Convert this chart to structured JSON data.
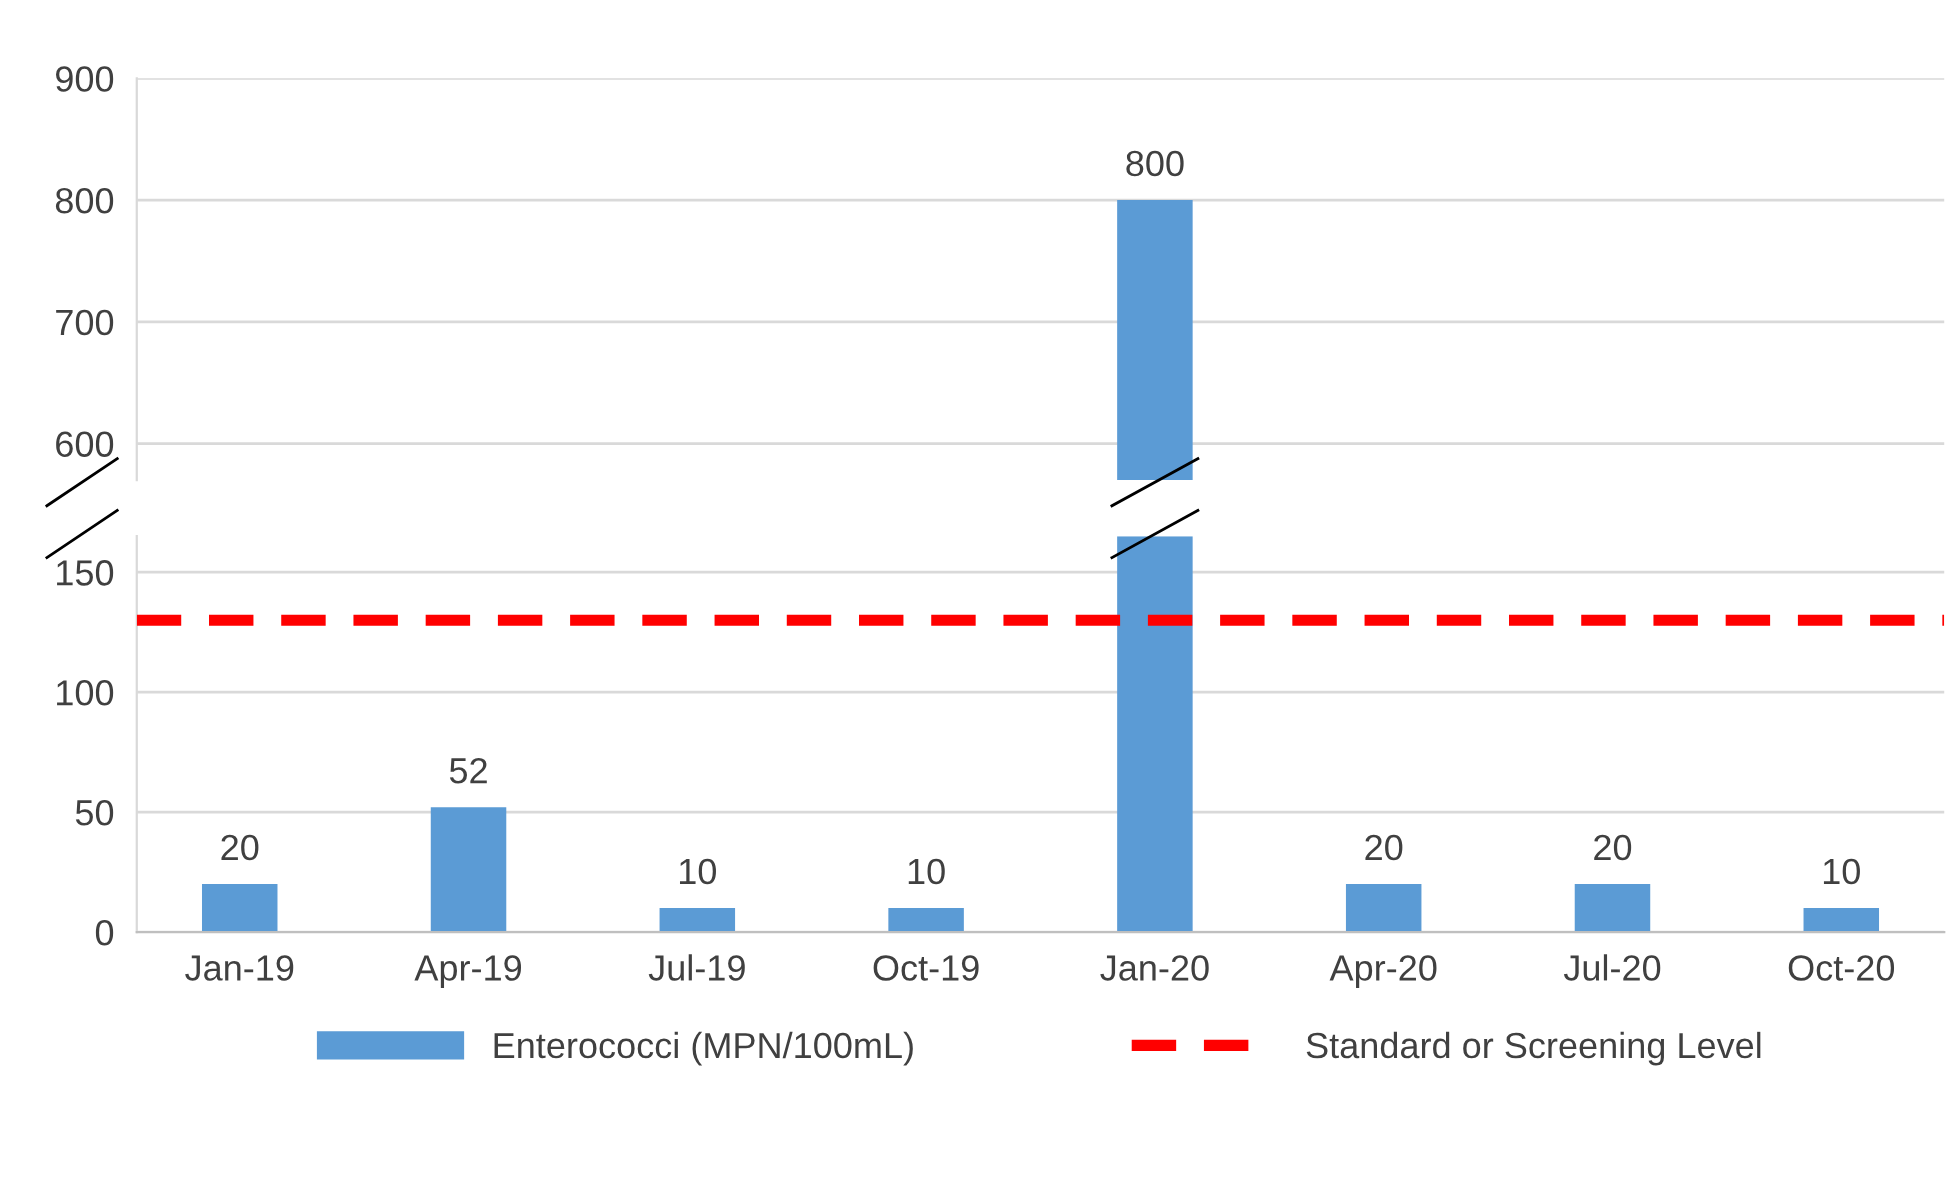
{
  "chart_data": [
    {
      "type": "bar",
      "categories": [
        null,
        null,
        null,
        null,
        null,
        null,
        null,
        null
      ],
      "series": [
        {
          "color": "#5b9bd5",
          "values": [
            null,
            null,
            null,
            null,
            800,
            null,
            null,
            null
          ]
        }
      ],
      "ylim": [
        570,
        900
      ],
      "yticks": [
        600,
        700,
        800,
        900
      ],
      "tick_labels": "y",
      "data_labels": true,
      "grid": "y"
    },
    {
      "type": "bar",
      "categories": [
        "Jan-19",
        "Apr-19",
        "Jul-19",
        "Oct-19",
        "Jan-20",
        "Apr-20",
        "Jul-20",
        "Oct-20"
      ],
      "series": [
        {
          "name": "Enterococci (MPN/100mL)",
          "color": "#5b9bd5",
          "values": [
            20,
            52,
            10,
            10,
            165,
            20,
            20,
            10
          ],
          "value_labels": [
            "20",
            "52",
            "10",
            "10",
            null,
            "20",
            "20",
            "10"
          ]
        }
      ],
      "ylim": [
        0,
        165
      ],
      "yticks": [
        0,
        50,
        100,
        150
      ],
      "ref_lines": [
        {
          "axis": "y",
          "value": 130,
          "label": "Standard or Screening Level",
          "color": "#ff0000",
          "line_style": "dashed"
        }
      ],
      "grid": "y",
      "legend": "bottom"
    }
  ]
}
